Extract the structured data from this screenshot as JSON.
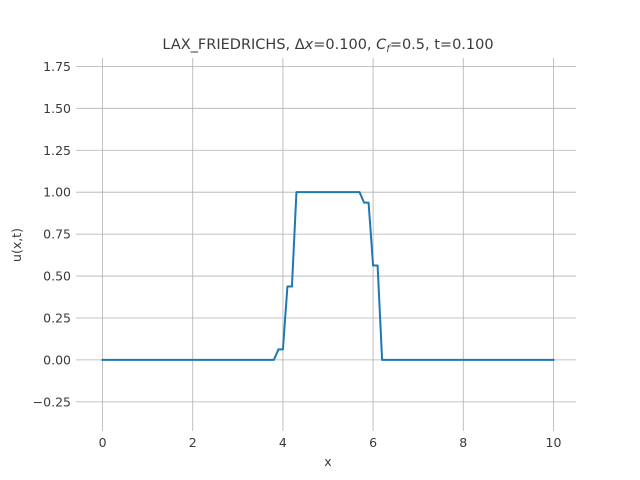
{
  "chart_data": {
    "type": "line",
    "title": "LAX_FRIEDRICHS, Δx=0.100, C_f=0.5, t=0.100",
    "title_parts": {
      "method": "LAX_FRIEDRICHS, ",
      "delta": "Δ",
      "dx_var": "x",
      "dx_value": "=0.100, ",
      "cf_var": "C",
      "cf_sub": "f",
      "cf_value": "=0.5, t=0.100"
    },
    "xlabel": "x",
    "ylabel": "u(x,t)",
    "xlim": [
      -0.5,
      10.5
    ],
    "ylim": [
      -0.4,
      1.8
    ],
    "grid": true,
    "x_ticks": [
      0,
      2,
      4,
      6,
      8,
      10
    ],
    "x_tick_labels": [
      "0",
      "2",
      "4",
      "6",
      "8",
      "10"
    ],
    "y_ticks": [
      -0.25,
      0,
      0.25,
      0.5,
      0.75,
      1.0,
      1.25,
      1.5,
      1.75
    ],
    "y_tick_labels": [
      "−0.25",
      "0.00",
      "0.25",
      "0.50",
      "0.75",
      "1.00",
      "1.25",
      "1.50",
      "1.75"
    ],
    "series": [
      {
        "color": "#1f77b4",
        "x": [
          0.0,
          3.8,
          3.9,
          4.0,
          4.1,
          4.2,
          4.3,
          5.7,
          5.8,
          5.9,
          6.0,
          6.1,
          6.2,
          10.0
        ],
        "y": [
          0.0,
          0.0,
          0.0625,
          0.0625,
          0.4375,
          0.4375,
          1.0,
          1.0,
          0.9375,
          0.9375,
          0.5625,
          0.5625,
          0.0,
          0.0
        ]
      }
    ]
  }
}
